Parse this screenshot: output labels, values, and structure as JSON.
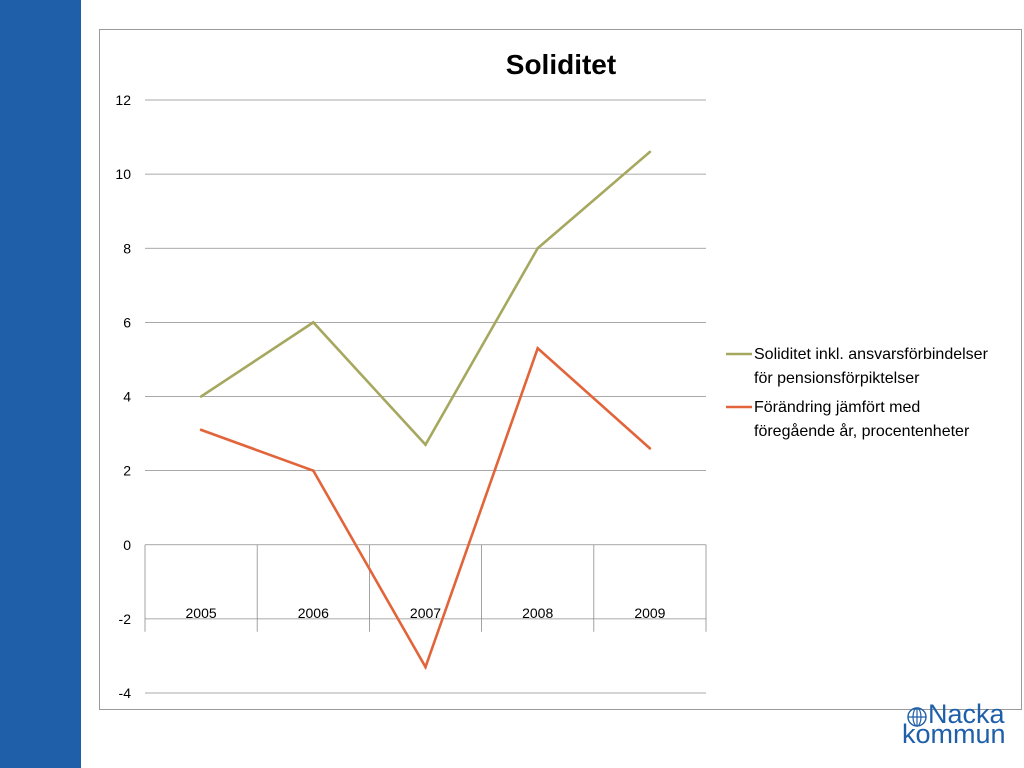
{
  "chart_data": {
    "type": "line",
    "title": "Soliditet",
    "categories": [
      "2005",
      "2006",
      "2007",
      "2008",
      "2009"
    ],
    "series": [
      {
        "name": "Soliditet inkl. ansvarsförbindelser för pensionsförpiktelser",
        "color": "#a6a860",
        "values": [
          4.0,
          6.0,
          2.7,
          8.0,
          10.6
        ]
      },
      {
        "name": "Förändring  jämfört med föregående år, procentenheter",
        "color": "#e2643a",
        "values": [
          3.1,
          2.0,
          -3.3,
          5.3,
          2.6
        ]
      }
    ],
    "ylim": [
      -4,
      12
    ],
    "yticks": [
      "12",
      "10",
      "8",
      "6",
      "4",
      "2",
      "0",
      "-2",
      "-4"
    ],
    "ytick_values": [
      12,
      10,
      8,
      6,
      4,
      2,
      0,
      -2,
      -4
    ],
    "grid": true,
    "legend": "right",
    "legend_lines": [
      [
        "Soliditet inkl. ansvarsförbindelser",
        "för pensionsförpiktelser"
      ],
      [
        "Förändring  jämfört med",
        "föregående år, procentenheter"
      ]
    ]
  },
  "logo": {
    "line1": "Nacka",
    "line2": "kommun",
    "color": "#1f5fa9",
    "icon": "globe-icon"
  },
  "colors": {
    "side_band": "#1f5fa9",
    "grid": "#8c8c8c"
  }
}
